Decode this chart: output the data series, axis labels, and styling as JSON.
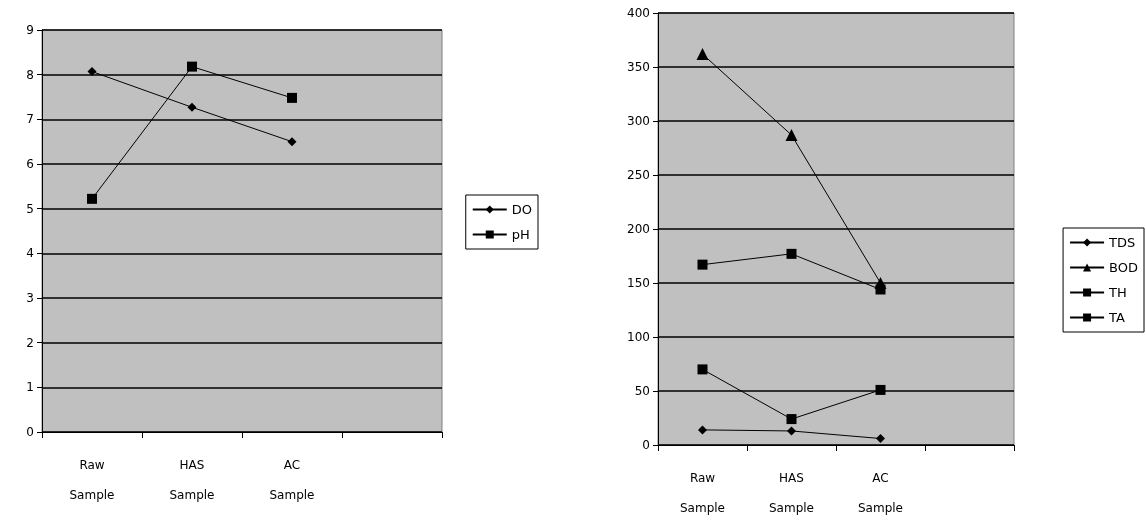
{
  "chart_data": [
    {
      "type": "line",
      "categories": [
        "Raw Sample",
        "HAS Sample",
        "AC Sample",
        null
      ],
      "ylim": [
        0,
        9
      ],
      "yticks": [
        0,
        1,
        2,
        3,
        4,
        5,
        6,
        7,
        8,
        9
      ],
      "grid": "y",
      "legend": "right",
      "series": [
        {
          "name": "DO",
          "color": "#000000",
          "marker": "diamond",
          "values": [
            8.07,
            7.27,
            6.5,
            null
          ]
        },
        {
          "name": "pH",
          "color": "#000000",
          "marker": "square",
          "values": [
            5.22,
            8.18,
            7.48,
            null
          ]
        }
      ]
    },
    {
      "type": "line",
      "categories": [
        "Raw Sample",
        "HAS Sample",
        "AC Sample",
        null
      ],
      "ylim": [
        0,
        400
      ],
      "yticks": [
        0,
        50,
        100,
        150,
        200,
        250,
        300,
        350,
        400
      ],
      "grid": "y",
      "legend": "right",
      "series": [
        {
          "name": "TDS",
          "color": "#000000",
          "marker": "diamond",
          "values": [
            14,
            13,
            6,
            null
          ]
        },
        {
          "name": "BOD",
          "color": "#000000",
          "marker": "triangle",
          "values": [
            362,
            287,
            150,
            null
          ]
        },
        {
          "name": "TH",
          "color": "#000000",
          "marker": "square",
          "values": [
            167,
            177,
            144,
            null
          ]
        },
        {
          "name": "TA",
          "color": "#000000",
          "marker": "square",
          "values": [
            70,
            24,
            51,
            null
          ]
        }
      ]
    }
  ]
}
